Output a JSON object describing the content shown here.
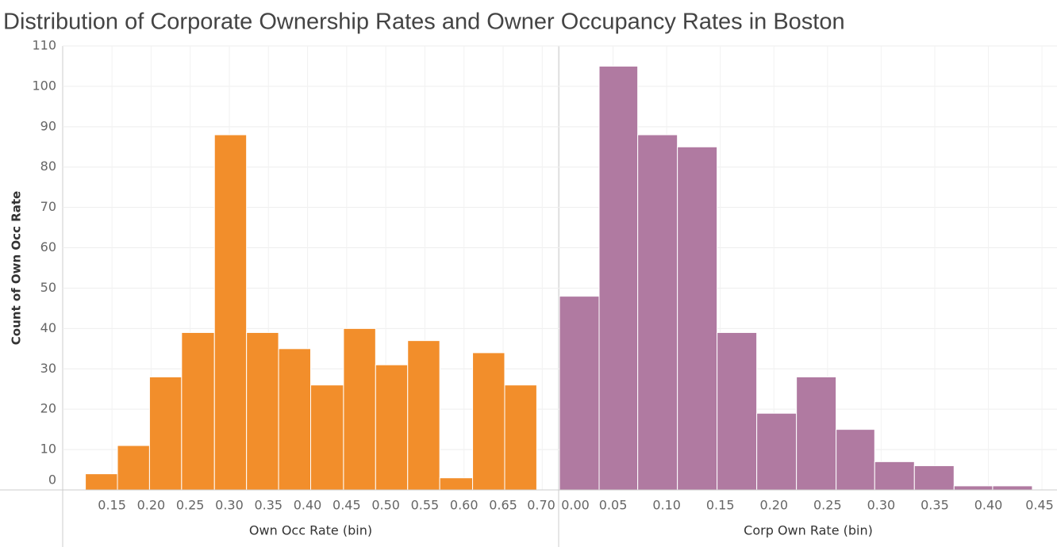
{
  "chart_data": [
    {
      "type": "histogram",
      "title": "Distribution of Corporate Ownership Rates and Owner Occupancy Rates in Boston",
      "y_label": "Count of Own Occ Rate",
      "x_label": "Own Occ Rate (bin)",
      "color": "#f28e2b",
      "grid": true,
      "bins": [
        0.116,
        0.157,
        0.198,
        0.239,
        0.281,
        0.322,
        0.363,
        0.404,
        0.446,
        0.487,
        0.528,
        0.569,
        0.611,
        0.652,
        0.693
      ],
      "values": [
        4,
        11,
        28,
        39,
        88,
        39,
        35,
        26,
        40,
        31,
        37,
        3,
        34,
        26
      ],
      "xlim": [
        0.087,
        0.721
      ],
      "xticks": [
        0.15,
        {
          "value": 0.2,
          "label": "0.20"
        },
        0.25,
        {
          "value": 0.3,
          "label": "0.30"
        },
        0.35,
        {
          "value": 0.4,
          "label": "0.40"
        },
        0.45,
        {
          "value": 0.5,
          "label": "0.50"
        },
        0.55,
        {
          "value": 0.6,
          "label": "0.60"
        },
        0.65,
        {
          "value": 0.7,
          "label": "0.70"
        }
      ],
      "ylim": [
        0,
        110
      ],
      "yticks": [
        0,
        10,
        20,
        30,
        40,
        50,
        60,
        70,
        80,
        90,
        100,
        110
      ]
    },
    {
      "type": "histogram",
      "x_label": "Corp Own Rate (bin)",
      "color": "#b07aa1",
      "grid": true,
      "bins": [
        0,
        0.037,
        0.073,
        0.11,
        0.147,
        0.184,
        0.221,
        0.258,
        0.294,
        0.331,
        0.368,
        0.404,
        0.441
      ],
      "values": [
        48,
        105,
        88,
        85,
        39,
        19,
        28,
        15,
        7,
        6,
        1,
        1
      ],
      "xlim": [
        0,
        0.464
      ],
      "xticks": [
        {
          "value": 0,
          "label": "0.00"
        },
        0.05,
        {
          "value": 0.1,
          "label": "0.10"
        },
        0.15,
        {
          "value": 0.2,
          "label": "0.20"
        },
        0.25,
        {
          "value": 0.3,
          "label": "0.30"
        },
        0.35,
        {
          "value": 0.4,
          "label": "0.40"
        },
        0.45
      ],
      "ylim": [
        0,
        110
      ]
    }
  ]
}
